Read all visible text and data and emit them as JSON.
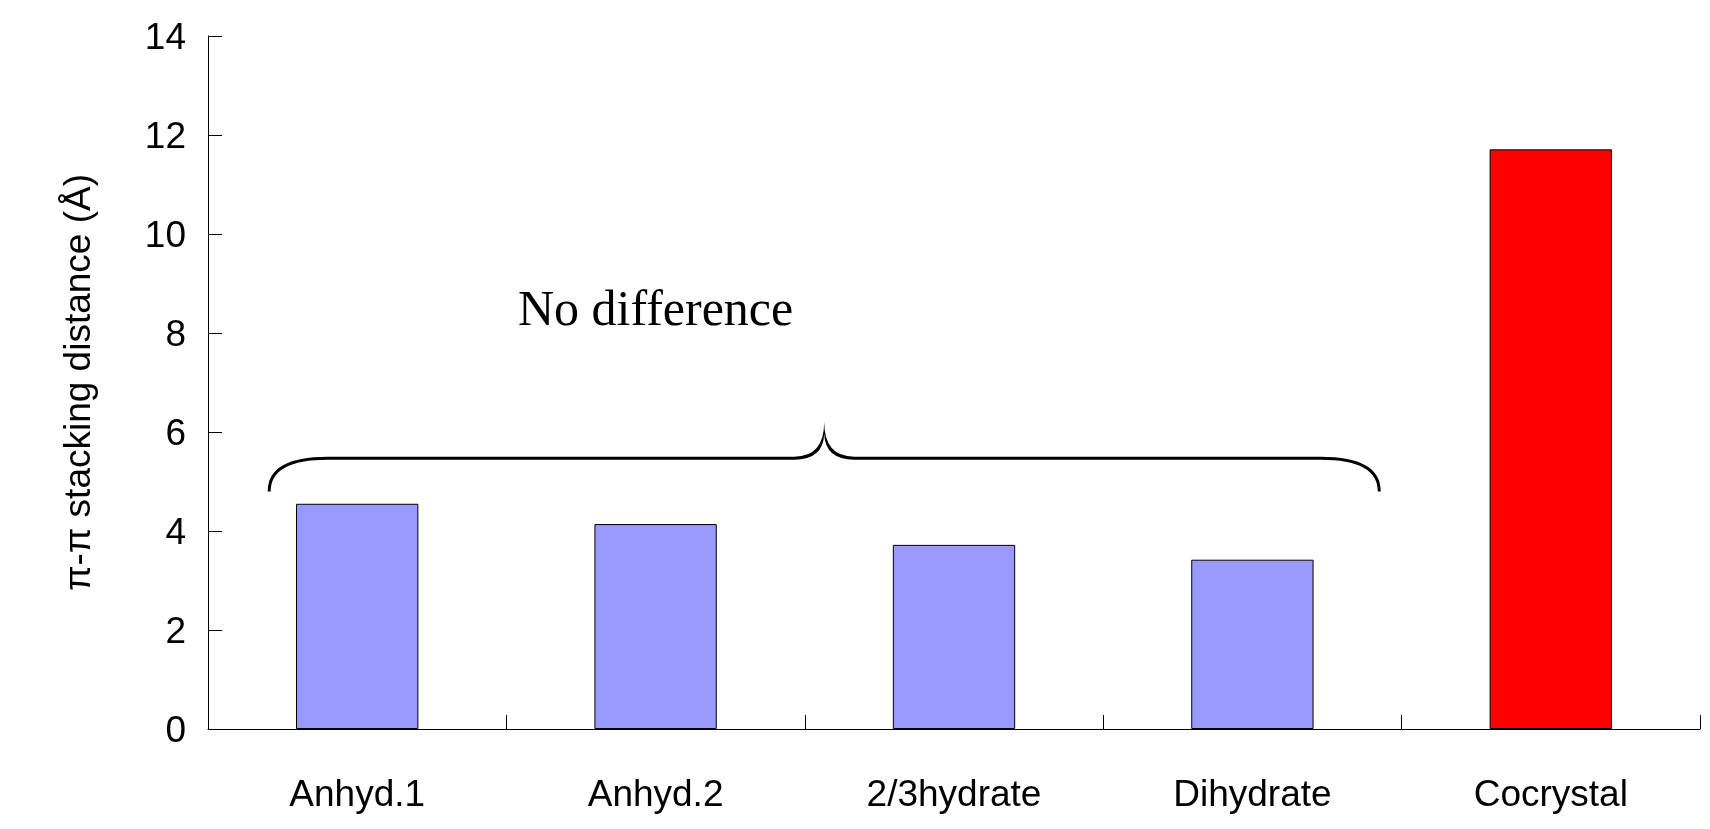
{
  "chart_data": {
    "type": "bar",
    "ylabel": "π-π stacking distance (Å)",
    "categories": [
      "Anhyd.1",
      "Anhyd.2",
      "2/3hydrate",
      "Dihydrate",
      "Cocrystal"
    ],
    "values": [
      4.55,
      4.14,
      3.72,
      3.42,
      11.71
    ],
    "colors": [
      "#9999ff",
      "#9999ff",
      "#9999ff",
      "#9999ff",
      "#ff0000"
    ],
    "ylim": [
      0,
      14
    ],
    "yticks": [
      0,
      2,
      4,
      6,
      8,
      10,
      12,
      14
    ],
    "grid": false,
    "annotations": [
      "No difference"
    ]
  }
}
